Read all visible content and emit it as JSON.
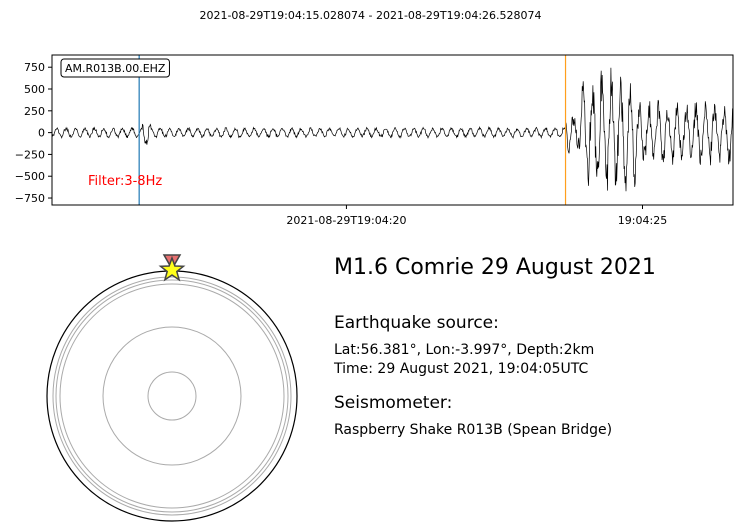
{
  "header": {
    "time_range": "2021-08-29T19:04:15.028074  -  2021-08-29T19:04:26.528074"
  },
  "chart_data": {
    "type": "line",
    "title": "2021-08-29T19:04:15.028074  -  2021-08-29T19:04:26.528074",
    "station_label": "AM.R013B.00.EHZ",
    "filter_label": "Filter:3-8Hz",
    "x_start_seconds": 15.028074,
    "x_end_seconds": 26.528074,
    "x_ticks": [
      {
        "seconds": 20,
        "label": "2021-08-29T19:04:20"
      },
      {
        "seconds": 25,
        "label": "19:04:25"
      }
    ],
    "ylim": [
      -830,
      890
    ],
    "y_ticks": [
      {
        "value": 750,
        "label": "750"
      },
      {
        "value": 500,
        "label": "500"
      },
      {
        "value": 250,
        "label": "250"
      },
      {
        "value": 0,
        "label": "0"
      },
      {
        "value": -250,
        "label": "−250"
      },
      {
        "value": -500,
        "label": "−500"
      },
      {
        "value": -750,
        "label": "−750"
      }
    ],
    "p_arrival_seconds": 16.5,
    "s_arrival_seconds": 23.7,
    "colors": {
      "trace": "#000000",
      "p_line": "#1f77b4",
      "s_line": "#ff9f1c",
      "filter_text": "#ff0000"
    }
  },
  "info": {
    "title": "M1.6 Comrie 29 August 2021",
    "source_heading": "Earthquake source:",
    "coords": "Lat:56.381°, Lon:-3.997°, Depth:2km",
    "time": "Time: 29 August 2021, 19:04:05UTC",
    "seismometer_heading": "Seismometer:",
    "station": "Raspberry Shake R013B (Spean Bridge)"
  },
  "globe": {
    "source_marker": "star",
    "station_marker": "triangle",
    "colors": {
      "star": "#ffff1a",
      "triangle": "#e87070",
      "outline": "#444444",
      "rings": "#aaaaaa",
      "boundary": "#000000"
    }
  }
}
